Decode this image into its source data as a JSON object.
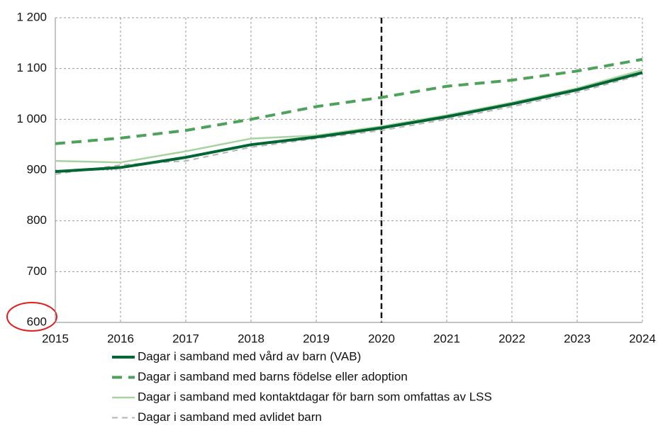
{
  "chart_data": {
    "type": "line",
    "x": [
      2015,
      2016,
      2017,
      2018,
      2019,
      2020,
      2021,
      2022,
      2023,
      2024
    ],
    "xlim": [
      2015,
      2024
    ],
    "xticks": [
      2015,
      2016,
      2017,
      2018,
      2019,
      2020,
      2021,
      2022,
      2023,
      2024
    ],
    "ylim": [
      600,
      1200
    ],
    "yticks": [
      600,
      700,
      800,
      900,
      {
        "value": 1000,
        "label": "1 000"
      },
      {
        "value": 1100,
        "label": "1 100"
      },
      {
        "value": 1200,
        "label": "1 200"
      }
    ],
    "grid": true,
    "vline": 2020,
    "legend": "bottom",
    "series": [
      {
        "name": "Dagar i samband med vård av  barn (VAB)",
        "color": "#006633",
        "dash": "solid",
        "width": 4,
        "values": [
          897,
          905,
          925,
          950,
          965,
          983,
          1005,
          1030,
          1058,
          1092
        ]
      },
      {
        "name": "Dagar i samband med barns födelse eller adoption",
        "color": "#4da25a",
        "dash": "dashed",
        "width": 4,
        "values": [
          952,
          963,
          978,
          1000,
          1025,
          1043,
          1065,
          1077,
          1095,
          1118
        ]
      },
      {
        "name": "Dagar i samband med kontaktdagar för barn som omfattas av LSS",
        "color": "#a8d3a0",
        "dash": "solid",
        "width": 2.5,
        "values": [
          918,
          915,
          937,
          962,
          968,
          986,
          1008,
          1033,
          1061,
          1097
        ]
      },
      {
        "name": "Dagar i samband med avlidet barn",
        "color": "#b3b3b3",
        "dash": "dashed",
        "width": 2,
        "values": [
          892,
          910,
          918,
          945,
          962,
          978,
          1000,
          1025,
          1053,
          1088
        ]
      }
    ]
  }
}
